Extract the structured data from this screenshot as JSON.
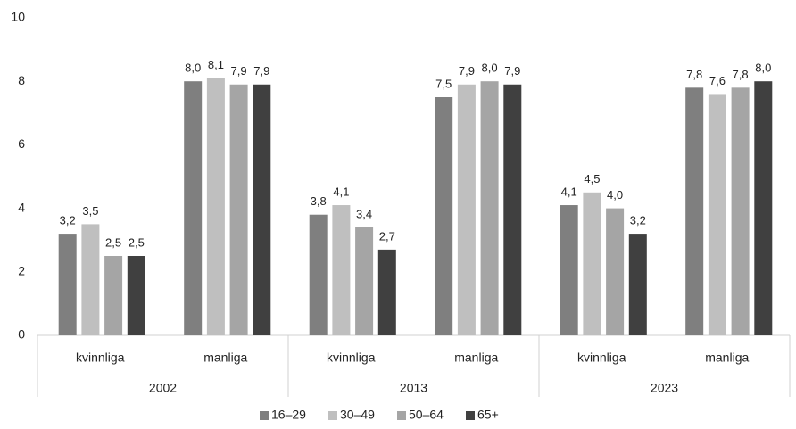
{
  "chart_data": {
    "type": "bar",
    "categories": [
      "kvinnliga",
      "manliga",
      "kvinnliga",
      "manliga",
      "kvinnliga",
      "manliga"
    ],
    "category_groups": [
      "2002",
      "2013",
      "2023"
    ],
    "series": [
      {
        "name": "16–29",
        "color": "#7f7f7f",
        "values": [
          3.2,
          8.0,
          3.8,
          7.5,
          4.1,
          7.8
        ],
        "value_labels": [
          "3,2",
          "8,0",
          "3,8",
          "7,5",
          "4,1",
          "7,8"
        ]
      },
      {
        "name": "30–49",
        "color": "#bfbfbf",
        "values": [
          3.5,
          8.1,
          4.1,
          7.9,
          4.5,
          7.6
        ],
        "value_labels": [
          "3,5",
          "8,1",
          "4,1",
          "7,9",
          "4,5",
          "7,6"
        ]
      },
      {
        "name": "50–64",
        "color": "#a5a5a5",
        "values": [
          2.5,
          7.9,
          3.4,
          8.0,
          4.0,
          7.8
        ],
        "value_labels": [
          "2,5",
          "7,9",
          "3,4",
          "8,0",
          "4,0",
          "7,8"
        ]
      },
      {
        "name": "65+",
        "color": "#404040",
        "values": [
          2.5,
          7.9,
          2.7,
          7.9,
          3.2,
          8.0
        ],
        "value_labels": [
          "2,5",
          "7,9",
          "2,7",
          "7,9",
          "3,2",
          "8,0"
        ]
      }
    ],
    "ylim": [
      0,
      10
    ],
    "yticks": [
      0,
      2,
      4,
      6,
      8,
      10
    ],
    "grid": false,
    "legend": "bottom"
  }
}
